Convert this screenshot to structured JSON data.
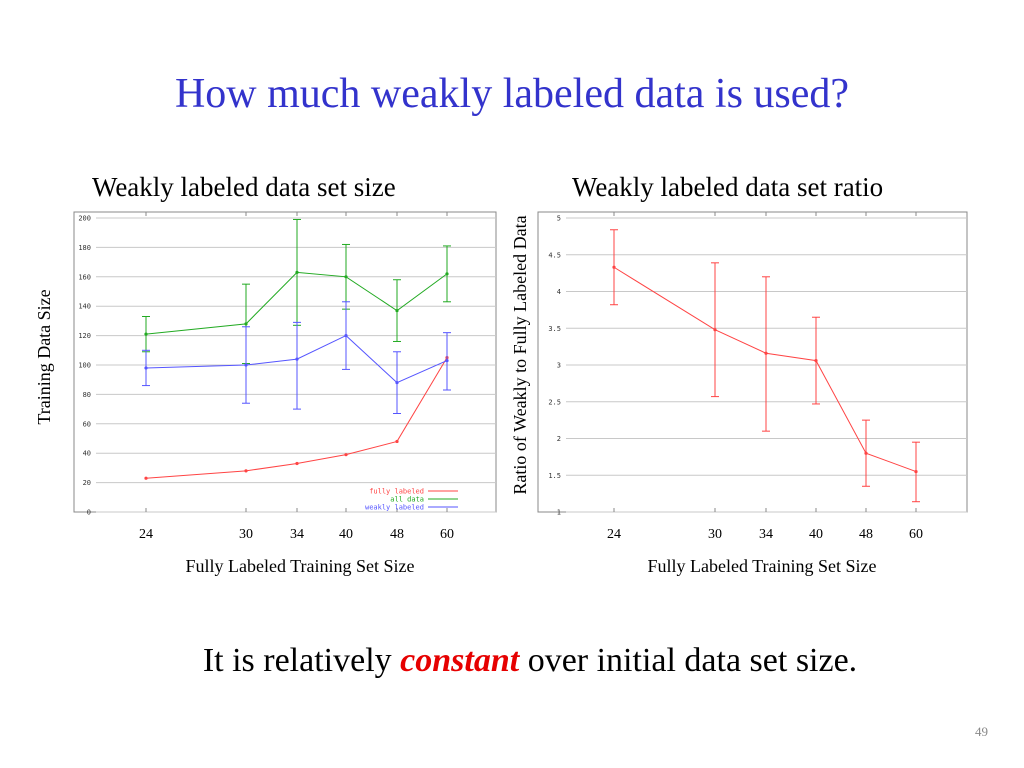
{
  "slide": {
    "title": "How much weakly labeled data is used?",
    "caption_before": "It is relatively ",
    "caption_emphasis": "constant",
    "caption_after": " over initial data set size.",
    "page_number": "49",
    "emphasis_color": "#e60000",
    "title_color": "#3333cc"
  },
  "chart_data": [
    {
      "type": "line",
      "title": "Weakly labeled data set size",
      "xlabel": "Fully Labeled Training Set Size",
      "ylabel": "Training Data Size",
      "x": [
        24,
        30,
        34,
        40,
        48,
        60
      ],
      "xticks": [
        "24",
        "30",
        "34",
        "40",
        "48",
        "60"
      ],
      "ylim": [
        0,
        200
      ],
      "yticks": [
        "0",
        "20",
        "40",
        "60",
        "80",
        "100",
        "120",
        "140",
        "160",
        "180",
        "200"
      ],
      "grid": true,
      "legend_position": "bottom-right",
      "series": [
        {
          "name": "fully labeled",
          "color": "#ff4444",
          "values": [
            23,
            28,
            33,
            39,
            48,
            105
          ],
          "errors": null
        },
        {
          "name": "all data",
          "color": "#22aa22",
          "values": [
            121,
            128,
            163,
            160,
            137,
            162
          ],
          "errors": [
            [
              109,
              133
            ],
            [
              101,
              155
            ],
            [
              127,
              199
            ],
            [
              138,
              182
            ],
            [
              116,
              158
            ],
            [
              143,
              181
            ]
          ]
        },
        {
          "name": "weakly labeled",
          "color": "#5555ff",
          "values": [
            98,
            100,
            104,
            120,
            88,
            103
          ],
          "errors": [
            [
              86,
              110
            ],
            [
              74,
              126
            ],
            [
              70,
              129
            ],
            [
              97,
              143
            ],
            [
              67,
              109
            ],
            [
              83,
              122
            ]
          ]
        }
      ]
    },
    {
      "type": "line",
      "title": "Weakly labeled data set ratio",
      "xlabel": "Fully Labeled Training Set Size",
      "ylabel": "Ratio of Weakly to Fully Labeled Data",
      "x": [
        24,
        30,
        34,
        40,
        48,
        60
      ],
      "xticks": [
        "24",
        "30",
        "34",
        "40",
        "48",
        "60"
      ],
      "ylim": [
        1,
        5
      ],
      "yticks": [
        "1",
        "1.5",
        "2",
        "2.5",
        "3",
        "3.5",
        "4",
        "4.5",
        "5"
      ],
      "grid": true,
      "series": [
        {
          "name": "",
          "color": "#ff4444",
          "values": [
            4.33,
            3.48,
            3.16,
            3.06,
            1.8,
            1.55
          ],
          "errors": [
            [
              3.82,
              4.84
            ],
            [
              2.57,
              4.39
            ],
            [
              2.1,
              4.2
            ],
            [
              2.47,
              3.65
            ],
            [
              1.35,
              2.25
            ],
            [
              1.14,
              1.95
            ]
          ]
        }
      ]
    }
  ]
}
